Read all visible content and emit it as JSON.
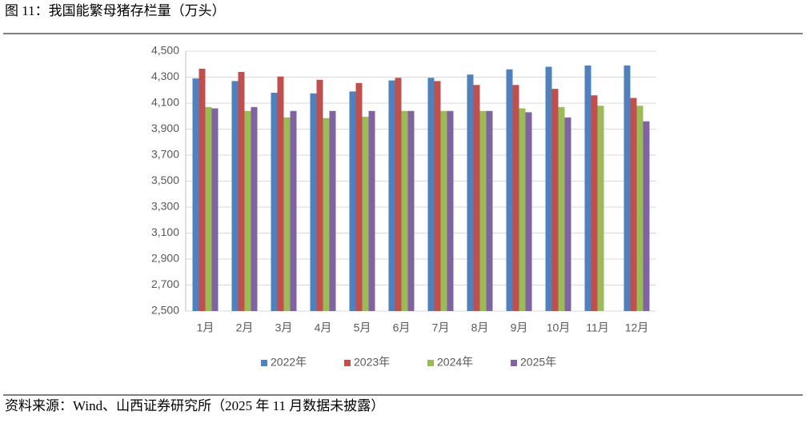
{
  "chart_data": {
    "type": "bar",
    "title": "图 11：我国能繁母猪存栏量（万头）",
    "source": "资料来源：Wind、山西证券研究所（2025 年 11 月数据未披露）",
    "categories": [
      "1月",
      "2月",
      "3月",
      "4月",
      "5月",
      "6月",
      "7月",
      "8月",
      "9月",
      "10月",
      "11月",
      "12月"
    ],
    "series": [
      {
        "name": "2022年",
        "color": "#4f81bd",
        "values": [
          4290,
          4270,
          4180,
          4175,
          4190,
          4275,
          4295,
          4320,
          4360,
          4380,
          4390,
          4390
        ]
      },
      {
        "name": "2023年",
        "color": "#c0504d",
        "values": [
          4365,
          4340,
          4305,
          4280,
          4255,
          4295,
          4270,
          4240,
          4240,
          4210,
          4160,
          4140
        ]
      },
      {
        "name": "2024年",
        "color": "#9bbb59",
        "values": [
          4070,
          4040,
          3990,
          3985,
          3995,
          4040,
          4040,
          4040,
          4060,
          4070,
          4080,
          4080
        ]
      },
      {
        "name": "2025年",
        "color": "#8064a2",
        "values": [
          4060,
          4070,
          4040,
          4040,
          4040,
          4040,
          4040,
          4040,
          4030,
          3990,
          null,
          3960
        ]
      }
    ],
    "ylim": [
      2500,
      4500
    ],
    "yticks": [
      {
        "value": 2500,
        "label": "2,500"
      },
      {
        "value": 2700,
        "label": "2,700"
      },
      {
        "value": 2900,
        "label": "2,900"
      },
      {
        "value": 3100,
        "label": "3,100"
      },
      {
        "value": 3300,
        "label": "3,300"
      },
      {
        "value": 3500,
        "label": "3,500"
      },
      {
        "value": 3700,
        "label": "3,700"
      },
      {
        "value": 3900,
        "label": "3,900"
      },
      {
        "value": 4100,
        "label": "4,100"
      },
      {
        "value": 4300,
        "label": "4,300"
      },
      {
        "value": 4500,
        "label": "4,500"
      }
    ],
    "grid": true
  }
}
